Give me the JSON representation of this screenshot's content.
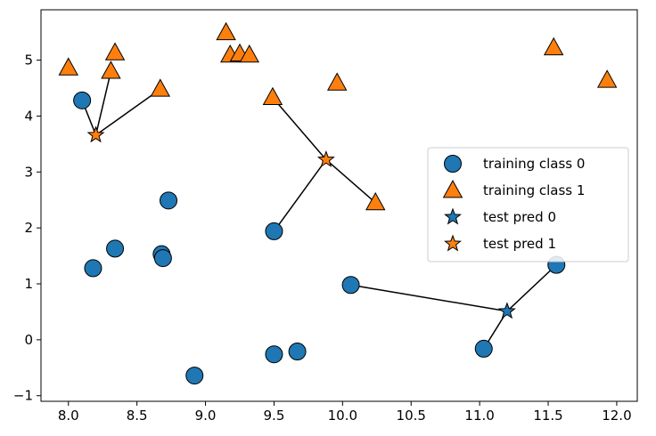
{
  "chart_data": {
    "type": "scatter",
    "title": "",
    "xlabel": "",
    "ylabel": "",
    "xlim": [
      7.8,
      12.15
    ],
    "ylim": [
      -1.1,
      5.9
    ],
    "x_ticks": [
      8.0,
      8.5,
      9.0,
      9.5,
      10.0,
      10.5,
      11.0,
      11.5,
      12.0
    ],
    "x_tick_labels": [
      "8.0",
      "8.5",
      "9.0",
      "9.5",
      "10.0",
      "10.5",
      "11.0",
      "11.5",
      "12.0"
    ],
    "y_ticks": [
      -1,
      0,
      1,
      2,
      3,
      4,
      5
    ],
    "y_tick_labels": [
      "−1",
      "0",
      "1",
      "2",
      "3",
      "4",
      "5"
    ],
    "grid": false,
    "legend_position": "center-right",
    "series": [
      {
        "name": "training class 0",
        "marker": "circle",
        "color": "#1f77b4",
        "points": [
          [
            8.1,
            4.28
          ],
          [
            8.18,
            1.28
          ],
          [
            8.34,
            1.63
          ],
          [
            8.68,
            1.53
          ],
          [
            8.69,
            1.46
          ],
          [
            8.73,
            2.49
          ],
          [
            8.92,
            -0.64
          ],
          [
            9.5,
            1.94
          ],
          [
            9.5,
            -0.26
          ],
          [
            9.67,
            -0.21
          ],
          [
            10.06,
            0.98
          ],
          [
            11.03,
            -0.16
          ],
          [
            11.56,
            1.34
          ]
        ]
      },
      {
        "name": "training class 1",
        "marker": "triangle",
        "color": "#ff7f0e",
        "points": [
          [
            8.0,
            4.86
          ],
          [
            8.31,
            4.8
          ],
          [
            8.34,
            5.13
          ],
          [
            8.67,
            4.48
          ],
          [
            9.15,
            5.49
          ],
          [
            9.18,
            5.09
          ],
          [
            9.25,
            5.11
          ],
          [
            9.32,
            5.09
          ],
          [
            9.49,
            4.33
          ],
          [
            9.96,
            4.59
          ],
          [
            10.24,
            2.45
          ],
          [
            11.54,
            5.22
          ],
          [
            11.93,
            4.64
          ]
        ]
      },
      {
        "name": "test pred 0",
        "marker": "star",
        "color": "#1f77b4",
        "points": [
          [
            11.2,
            0.51
          ]
        ]
      },
      {
        "name": "test pred 1",
        "marker": "star",
        "color": "#ff7f0e",
        "points": [
          [
            8.2,
            3.66
          ],
          [
            9.88,
            3.22
          ]
        ]
      }
    ],
    "neighbor_lines": [
      {
        "from": [
          8.2,
          3.66
        ],
        "to": [
          8.1,
          4.28
        ]
      },
      {
        "from": [
          8.2,
          3.66
        ],
        "to": [
          8.31,
          4.8
        ]
      },
      {
        "from": [
          8.2,
          3.66
        ],
        "to": [
          8.67,
          4.48
        ]
      },
      {
        "from": [
          9.88,
          3.22
        ],
        "to": [
          9.49,
          4.33
        ]
      },
      {
        "from": [
          9.88,
          3.22
        ],
        "to": [
          9.5,
          1.94
        ]
      },
      {
        "from": [
          9.88,
          3.22
        ],
        "to": [
          10.24,
          2.45
        ]
      },
      {
        "from": [
          11.2,
          0.51
        ],
        "to": [
          10.06,
          0.98
        ]
      },
      {
        "from": [
          11.2,
          0.51
        ],
        "to": [
          11.03,
          -0.16
        ]
      },
      {
        "from": [
          11.2,
          0.51
        ],
        "to": [
          11.56,
          1.34
        ]
      }
    ]
  }
}
